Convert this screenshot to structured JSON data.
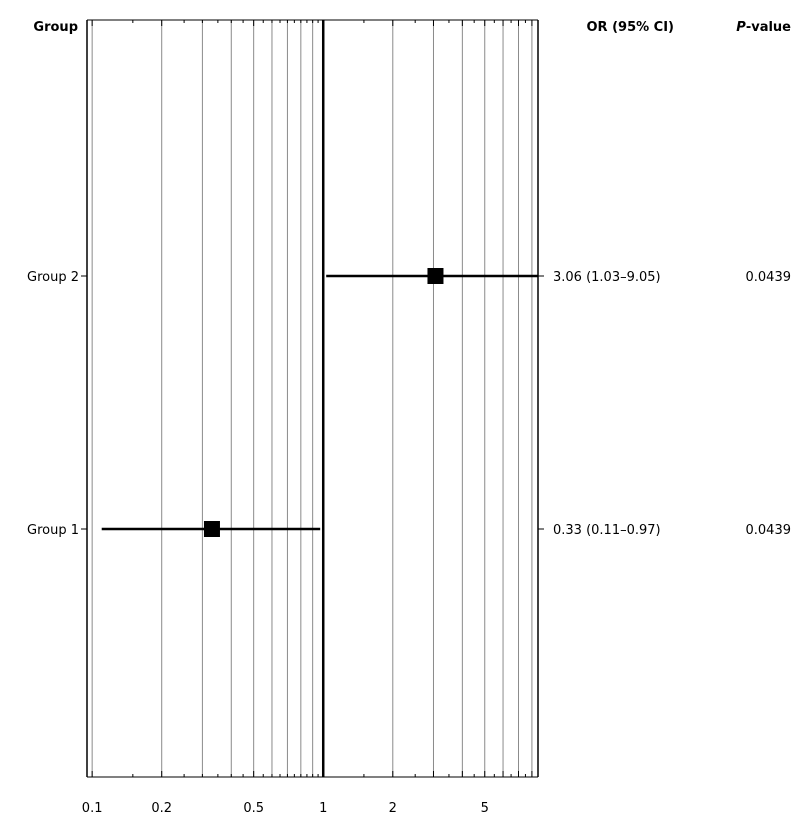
{
  "chart_data": {
    "type": "forest",
    "scale": "log",
    "xlim": [
      0.095,
      8.5
    ],
    "reference_line": 1,
    "x_ticks": [
      0.1,
      0.2,
      0.5,
      1,
      2,
      5
    ],
    "x_tick_labels": [
      "0.1",
      "0.2",
      "0.5",
      "1",
      "2",
      "5"
    ],
    "minor_ticks": [
      0.3,
      0.4,
      0.6,
      0.7,
      0.8,
      0.9,
      3,
      4,
      6,
      7,
      8
    ],
    "headers": {
      "group": "Group",
      "or": "OR (95% CI)",
      "p_prefix": "P",
      "p_suffix": "-value"
    },
    "rows": [
      {
        "label": "Group 2",
        "or": 3.06,
        "lower": 1.03,
        "upper": 9.05,
        "or_text": "3.06 (1.03–9.05)",
        "p_text": "0.0439"
      },
      {
        "label": "Group 1",
        "or": 0.33,
        "lower": 0.11,
        "upper": 0.97,
        "or_text": "0.33 (0.11–0.97)",
        "p_text": "0.0439"
      }
    ]
  }
}
